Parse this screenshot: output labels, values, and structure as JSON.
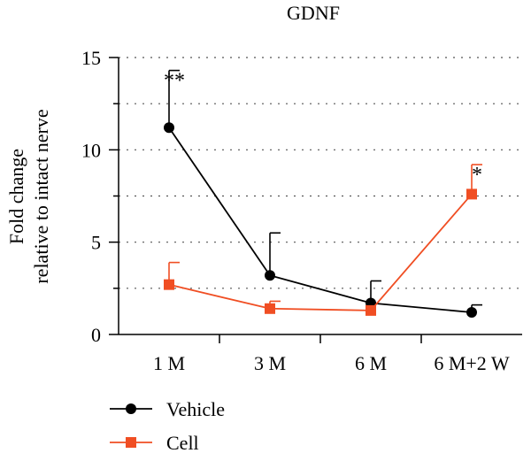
{
  "chart_data": {
    "type": "line",
    "title": "GDNF",
    "ylabel": [
      "Fold change",
      "relative to intact nerve"
    ],
    "xlabel": "",
    "categories": [
      "1 M",
      "3 M",
      "6 M",
      "6 M+2 W"
    ],
    "ylim": [
      0,
      15
    ],
    "yticks": [
      0,
      5,
      10,
      15
    ],
    "grid": "dotted horizontal",
    "legend_position": "bottom-left",
    "series": [
      {
        "name": "Vehicle",
        "color": "#000000",
        "marker": "circle",
        "values": [
          11.2,
          3.2,
          1.7,
          1.2
        ],
        "errors": [
          3.1,
          2.3,
          1.2,
          0.4
        ],
        "annotations": [
          "**",
          "",
          "",
          ""
        ]
      },
      {
        "name": "Cell",
        "color": "#f04e23",
        "marker": "square",
        "values": [
          2.7,
          1.4,
          1.3,
          7.6
        ],
        "errors": [
          1.2,
          0.4,
          0.0,
          1.6
        ],
        "annotations": [
          "",
          "",
          "",
          "*"
        ]
      }
    ]
  }
}
